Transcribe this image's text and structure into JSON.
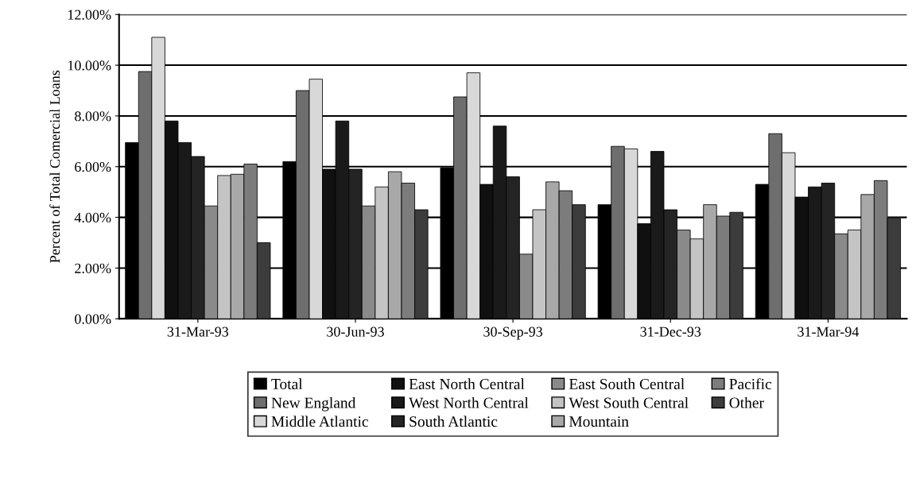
{
  "chart_data": {
    "type": "bar",
    "ylabel": "Percent of Total Comercial Loans",
    "categories": [
      "31-Mar-93",
      "30-Jun-93",
      "30-Sep-93",
      "31-Dec-93",
      "31-Mar-94"
    ],
    "ylim": [
      0,
      12
    ],
    "yticks": [
      {
        "value": 0,
        "label": "0.00%"
      },
      {
        "value": 2,
        "label": "2.00%"
      },
      {
        "value": 4,
        "label": "4.00%"
      },
      {
        "value": 6,
        "label": "6.00%"
      },
      {
        "value": 8,
        "label": "8.00%"
      },
      {
        "value": 10,
        "label": "10.00%"
      },
      {
        "value": 12,
        "label": "12.00%"
      }
    ],
    "grid": "y",
    "legend": "bottom",
    "series": [
      {
        "name": "Total",
        "color": "#000000",
        "values": [
          6.95,
          6.2,
          5.95,
          4.5,
          5.3
        ]
      },
      {
        "name": "New England",
        "color": "#6e6e6e",
        "values": [
          9.75,
          9.0,
          8.75,
          6.8,
          7.3
        ]
      },
      {
        "name": "Middle Atlantic",
        "color": "#d8d8d8",
        "values": [
          11.1,
          9.45,
          9.7,
          6.7,
          6.55
        ]
      },
      {
        "name": "East North Central",
        "color": "#101010",
        "values": [
          7.8,
          5.9,
          5.3,
          3.75,
          4.8
        ]
      },
      {
        "name": "West North Central",
        "color": "#1a1a1a",
        "values": [
          6.95,
          7.8,
          7.6,
          6.6,
          5.2
        ]
      },
      {
        "name": "South Atlantic",
        "color": "#242424",
        "values": [
          6.4,
          5.9,
          5.6,
          4.3,
          5.35
        ]
      },
      {
        "name": "East South Central",
        "color": "#8a8a8a",
        "values": [
          4.45,
          4.45,
          2.55,
          3.5,
          3.35
        ]
      },
      {
        "name": "West South Central",
        "color": "#c4c4c4",
        "values": [
          5.65,
          5.2,
          4.3,
          3.15,
          3.5
        ]
      },
      {
        "name": "Mountain",
        "color": "#a8a8a8",
        "values": [
          5.7,
          5.8,
          5.4,
          4.5,
          4.9
        ]
      },
      {
        "name": "Pacific",
        "color": "#7c7c7c",
        "values": [
          6.1,
          5.35,
          5.05,
          4.05,
          5.45
        ]
      },
      {
        "name": "Other",
        "color": "#3c3c3c",
        "values": [
          3.0,
          4.3,
          4.5,
          4.2,
          3.95
        ]
      }
    ]
  }
}
